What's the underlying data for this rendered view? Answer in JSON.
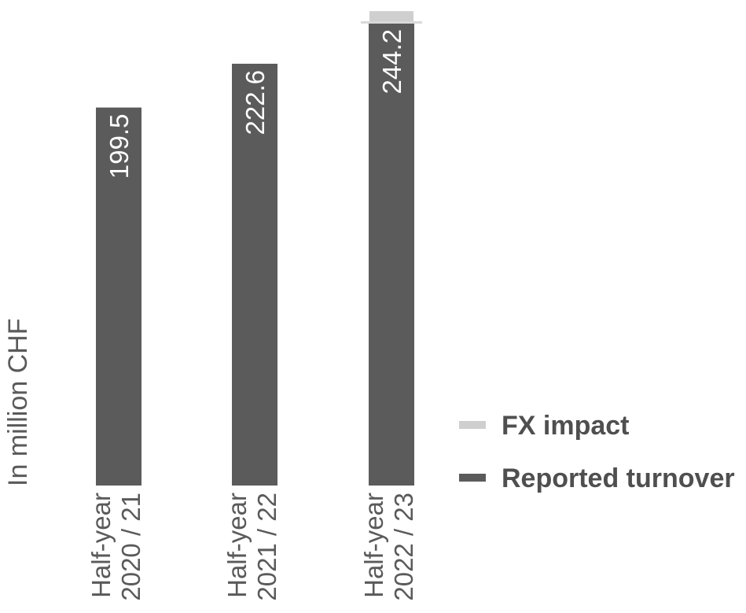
{
  "chart_data": {
    "type": "bar",
    "ylabel": "In million CHF",
    "categories": [
      [
        "Half-year",
        "2020 / 21"
      ],
      [
        "Half-year",
        "2021 / 22"
      ],
      [
        "Half-year",
        "2022 / 23"
      ]
    ],
    "series": [
      {
        "name": "Reported turnover",
        "color": "#5b5b5b",
        "values": [
          199.5,
          222.6,
          244.2
        ]
      },
      {
        "name": "FX impact",
        "color": "#cfcfcf",
        "values": [
          0,
          0,
          7.0
        ]
      }
    ],
    "data_labels": [
      "199.5",
      "222.6",
      "244.2"
    ],
    "ylim": [
      0,
      255
    ],
    "legend_position": "right"
  }
}
